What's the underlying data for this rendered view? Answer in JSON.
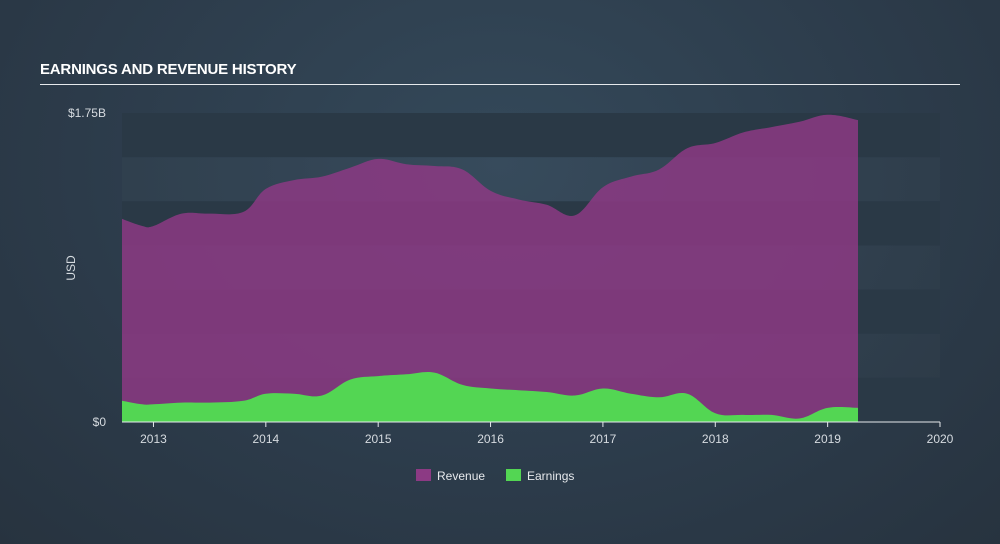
{
  "title": "EARNINGS AND REVENUE HISTORY",
  "chart_data": {
    "type": "area",
    "ylabel": "USD",
    "y_tick_labels": [
      {
        "value": 0,
        "label": "$0"
      },
      {
        "value": 1.75,
        "label": "$1.75B"
      }
    ],
    "ylim": [
      0,
      1.75
    ],
    "xlim": [
      2012.72,
      2020.0
    ],
    "x_ticks": [
      2013,
      2014,
      2015,
      2016,
      2017,
      2018,
      2019,
      2020
    ],
    "grid": "horizontal bands",
    "legend_position": "bottom-center",
    "series": [
      {
        "name": "Revenue",
        "color": "#8c3a84",
        "x": [
          2012.72,
          2012.9,
          2013.0,
          2013.25,
          2013.5,
          2013.8,
          2014.0,
          2014.25,
          2014.5,
          2014.75,
          2015.0,
          2015.25,
          2015.5,
          2015.75,
          2016.0,
          2016.25,
          2016.5,
          2016.75,
          2017.0,
          2017.25,
          2017.5,
          2017.75,
          2018.0,
          2018.25,
          2018.5,
          2018.75,
          2019.0,
          2019.27
        ],
        "values": [
          1.15,
          1.11,
          1.11,
          1.18,
          1.18,
          1.19,
          1.32,
          1.37,
          1.39,
          1.44,
          1.49,
          1.46,
          1.45,
          1.43,
          1.31,
          1.26,
          1.23,
          1.17,
          1.33,
          1.39,
          1.43,
          1.55,
          1.58,
          1.64,
          1.67,
          1.7,
          1.74,
          1.71
        ]
      },
      {
        "name": "Earnings",
        "color": "#53d653",
        "x": [
          2012.72,
          2012.9,
          2013.0,
          2013.25,
          2013.5,
          2013.8,
          2014.0,
          2014.25,
          2014.5,
          2014.75,
          2015.0,
          2015.25,
          2015.5,
          2015.75,
          2016.0,
          2016.25,
          2016.5,
          2016.75,
          2017.0,
          2017.25,
          2017.5,
          2017.75,
          2018.0,
          2018.25,
          2018.5,
          2018.75,
          2019.0,
          2019.27
        ],
        "values": [
          0.12,
          0.1,
          0.1,
          0.11,
          0.11,
          0.12,
          0.16,
          0.16,
          0.15,
          0.24,
          0.26,
          0.27,
          0.28,
          0.21,
          0.19,
          0.18,
          0.17,
          0.15,
          0.19,
          0.16,
          0.14,
          0.16,
          0.05,
          0.04,
          0.04,
          0.02,
          0.08,
          0.08
        ]
      }
    ]
  },
  "colors": {
    "background": "#2f3f4e",
    "grid_band": "#2a3946",
    "axis": "#e6e9ec"
  }
}
